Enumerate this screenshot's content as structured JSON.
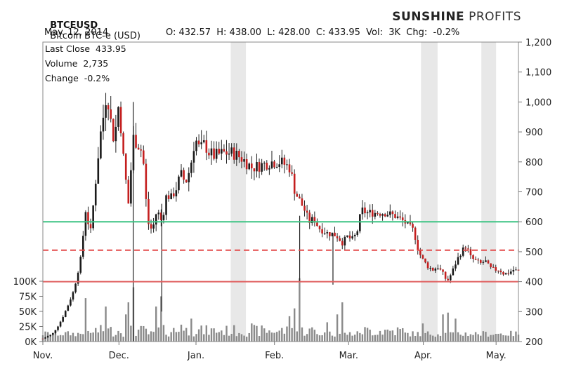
{
  "header": {
    "symbol": "BTCEUSD",
    "name": "Bitcoin BTC-e (USD)",
    "date": "May. 12, 2014",
    "ohlc": "O: 432.57  H: 438.00  L: 428.00  C: 433.95  Vol:  3K  Chg:  -0.2%"
  },
  "brand": {
    "bold": "SUNSHINE",
    "light": " PROFITS"
  },
  "stats": {
    "last_close": "Last Close  433.95",
    "volume": "Volume  2,735",
    "change": "Change  -0.2%"
  },
  "chart_data": {
    "type": "candlestick",
    "price_axis": {
      "ticks": [
        "1,200",
        "1,100",
        "1,000",
        "900",
        "800",
        "700",
        "600",
        "500",
        "400",
        "300",
        "200"
      ],
      "range": [
        200,
        1200
      ]
    },
    "volume_axis": {
      "ticks": [
        "100K",
        "75K",
        "50K",
        "25K",
        "0K"
      ],
      "range": [
        0,
        100000
      ]
    },
    "x_ticks": [
      "Nov.",
      "Dec.",
      "Jan.",
      "Feb.",
      "Mar.",
      "Apr.",
      "May."
    ],
    "reference_lines": [
      {
        "value": 600,
        "color": "#3cc483",
        "style": "solid"
      },
      {
        "value": 505,
        "color": "#e34b4b",
        "style": "dashed"
      },
      {
        "value": 400,
        "color": "#e06060",
        "style": "solid"
      }
    ],
    "shaded_periods": [
      [
        0.395,
        0.427
      ],
      [
        0.795,
        0.83
      ],
      [
        0.922,
        0.953
      ]
    ],
    "price_path": [
      [
        0.0,
        210
      ],
      [
        0.02,
        225
      ],
      [
        0.035,
        260
      ],
      [
        0.05,
        310
      ],
      [
        0.065,
        370
      ],
      [
        0.08,
        480
      ],
      [
        0.09,
        640
      ],
      [
        0.1,
        560
      ],
      [
        0.11,
        720
      ],
      [
        0.12,
        880
      ],
      [
        0.13,
        980
      ],
      [
        0.135,
        1050
      ],
      [
        0.14,
        960
      ],
      [
        0.15,
        870
      ],
      [
        0.16,
        1000
      ],
      [
        0.17,
        800
      ],
      [
        0.18,
        660
      ],
      [
        0.19,
        880
      ],
      [
        0.2,
        860
      ],
      [
        0.21,
        830
      ],
      [
        0.22,
        600
      ],
      [
        0.23,
        570
      ],
      [
        0.24,
        640
      ],
      [
        0.25,
        600
      ],
      [
        0.26,
        690
      ],
      [
        0.27,
        680
      ],
      [
        0.28,
        710
      ],
      [
        0.29,
        760
      ],
      [
        0.3,
        730
      ],
      [
        0.31,
        780
      ],
      [
        0.32,
        880
      ],
      [
        0.33,
        840
      ],
      [
        0.34,
        860
      ],
      [
        0.35,
        830
      ],
      [
        0.36,
        820
      ],
      [
        0.38,
        830
      ],
      [
        0.4,
        830
      ],
      [
        0.42,
        810
      ],
      [
        0.44,
        780
      ],
      [
        0.46,
        790
      ],
      [
        0.48,
        800
      ],
      [
        0.5,
        800
      ],
      [
        0.52,
        780
      ],
      [
        0.53,
        700
      ],
      [
        0.55,
        640
      ],
      [
        0.56,
        600
      ],
      [
        0.57,
        610
      ],
      [
        0.58,
        580
      ],
      [
        0.59,
        570
      ],
      [
        0.6,
        560
      ],
      [
        0.61,
        560
      ],
      [
        0.62,
        550
      ],
      [
        0.63,
        530
      ],
      [
        0.64,
        550
      ],
      [
        0.65,
        540
      ],
      [
        0.66,
        560
      ],
      [
        0.67,
        640
      ],
      [
        0.68,
        630
      ],
      [
        0.7,
        630
      ],
      [
        0.72,
        630
      ],
      [
        0.74,
        620
      ],
      [
        0.76,
        600
      ],
      [
        0.78,
        570
      ],
      [
        0.79,
        500
      ],
      [
        0.8,
        470
      ],
      [
        0.81,
        450
      ],
      [
        0.82,
        440
      ],
      [
        0.83,
        450
      ],
      [
        0.84,
        430
      ],
      [
        0.85,
        400
      ],
      [
        0.86,
        430
      ],
      [
        0.87,
        470
      ],
      [
        0.88,
        500
      ],
      [
        0.89,
        520
      ],
      [
        0.9,
        480
      ],
      [
        0.91,
        470
      ],
      [
        0.92,
        460
      ],
      [
        0.93,
        470
      ],
      [
        0.94,
        445
      ],
      [
        0.95,
        440
      ],
      [
        0.96,
        440
      ],
      [
        0.97,
        425
      ],
      [
        0.98,
        430
      ],
      [
        0.99,
        440
      ],
      [
        1.0,
        434
      ]
    ],
    "volume_spikes": [
      [
        0.09,
        72000
      ],
      [
        0.13,
        58000
      ],
      [
        0.175,
        45000
      ],
      [
        0.18,
        65000
      ],
      [
        0.19,
        90000
      ],
      [
        0.24,
        58000
      ],
      [
        0.25,
        75000
      ],
      [
        0.29,
        28000
      ],
      [
        0.31,
        38000
      ],
      [
        0.44,
        30000
      ],
      [
        0.52,
        42000
      ],
      [
        0.53,
        55000
      ],
      [
        0.54,
        105000
      ],
      [
        0.6,
        32000
      ],
      [
        0.62,
        45000
      ],
      [
        0.63,
        65000
      ],
      [
        0.8,
        30000
      ],
      [
        0.84,
        45000
      ],
      [
        0.85,
        48000
      ],
      [
        0.87,
        38000
      ]
    ]
  }
}
